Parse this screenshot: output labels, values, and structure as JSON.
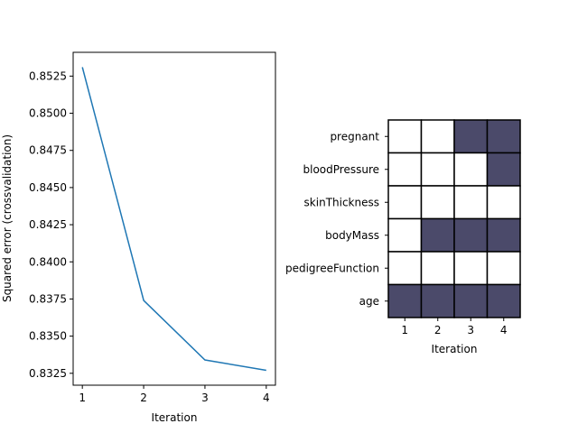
{
  "chart_data": [
    {
      "type": "line",
      "title": "",
      "xlabel": "Iteration",
      "ylabel": "Squared error (crossvalidation)",
      "x": [
        1,
        2,
        3,
        4
      ],
      "x_ticks": [
        "1",
        "2",
        "3",
        "4"
      ],
      "series": [
        {
          "values": [
            0.8531,
            0.8374,
            0.8334,
            0.8327
          ]
        }
      ],
      "ylim": [
        0.8317,
        0.8541
      ],
      "y_ticks": [
        "0.8325",
        "0.8350",
        "0.8375",
        "0.8400",
        "0.8425",
        "0.8450",
        "0.8475",
        "0.8500",
        "0.8525"
      ],
      "line_color": "#1f77b4",
      "grid": false
    },
    {
      "type": "heatmap",
      "title": "",
      "xlabel": "Iteration",
      "ylabel": "",
      "x_ticks": [
        "1",
        "2",
        "3",
        "4"
      ],
      "rows": [
        "pregnant",
        "bloodPressure",
        "skinThickness",
        "bodyMass",
        "pedigreeFunction",
        "age"
      ],
      "values": [
        [
          0,
          0,
          1,
          1
        ],
        [
          0,
          0,
          0,
          1
        ],
        [
          0,
          0,
          0,
          0
        ],
        [
          0,
          1,
          1,
          1
        ],
        [
          0,
          0,
          0,
          0
        ],
        [
          1,
          1,
          1,
          1
        ]
      ],
      "on_color": "#4b4a6a",
      "off_color": "#ffffff",
      "grid": false
    }
  ]
}
